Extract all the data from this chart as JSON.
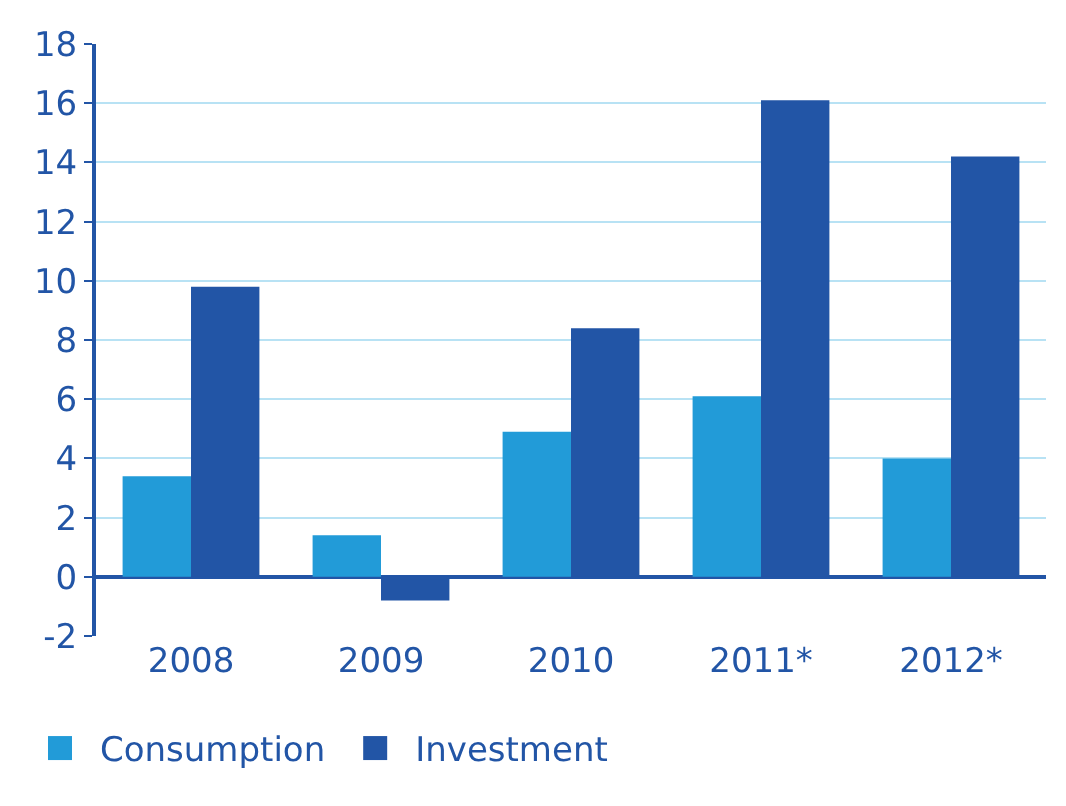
{
  "chart_data": {
    "type": "bar",
    "categories": [
      "2008",
      "2009",
      "2010",
      "2011*",
      "2012*"
    ],
    "series": [
      {
        "name": "Consumption",
        "color": "#229bd8",
        "values": [
          3.4,
          1.4,
          4.9,
          6.1,
          4.0
        ]
      },
      {
        "name": "Investment",
        "color": "#2255a6",
        "values": [
          9.8,
          -0.8,
          8.4,
          16.1,
          14.2
        ]
      }
    ],
    "ylim": [
      -2,
      18
    ],
    "yticks": [
      -2,
      0,
      2,
      4,
      6,
      8,
      10,
      12,
      14,
      16,
      18
    ],
    "grid": "y",
    "legend": "bottom left"
  }
}
